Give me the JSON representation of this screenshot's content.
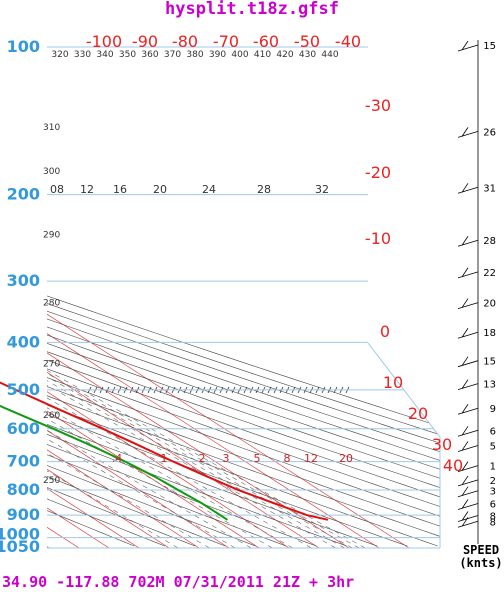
{
  "title": "hysplit.t18z.gfsf",
  "footer": "34.90 -117.88 702M   07/31/2011  21Z  +  3hr",
  "speed_header_1": "SPEED",
  "speed_header_2": "(knts)",
  "colors": {
    "temperature": "#dd1111",
    "dewpoint": "#119911",
    "isobar": "#9fc8e8",
    "isotherm": "#e04040",
    "dry_adiabat": "#444444",
    "mixing_ratio": "#666666",
    "title": "#cc00cc",
    "pressure_label": "#3399dd"
  },
  "chart_data": {
    "type": "skew-t",
    "pressure_levels": [
      "100",
      "200",
      "300",
      "400",
      "500",
      "600",
      "700",
      "800",
      "900",
      "1000",
      "1050"
    ],
    "top_temperature_labels": [
      "-100",
      "-90",
      "-80",
      "-70",
      "-60",
      "-50",
      "-40"
    ],
    "right_temperature_labels": [
      "-30",
      "-20",
      "-10",
      "0",
      "10",
      "20",
      "30",
      "40"
    ],
    "theta_labels_top": [
      "320",
      "330",
      "340",
      "350",
      "360",
      "370",
      "380",
      "390",
      "400",
      "410",
      "420",
      "430",
      "440"
    ],
    "theta_labels_left": [
      {
        "label": "310",
        "p": 145
      },
      {
        "label": "300",
        "p": 178
      },
      {
        "label": "290",
        "p": 240
      },
      {
        "label": "280",
        "p": 330
      },
      {
        "label": "270",
        "p": 440
      },
      {
        "label": "260",
        "p": 560
      },
      {
        "label": "250",
        "p": 760
      }
    ],
    "mixing_ratio_labels_upper": [
      "08",
      "12",
      "16",
      "20",
      "24",
      "28",
      "32"
    ],
    "mixing_ratio_labels_lower": [
      ".4",
      "1",
      "2",
      "3",
      "5",
      "8",
      "12",
      "20"
    ],
    "temperature_profile": [
      {
        "p": 920,
        "t": 37.5
      },
      {
        "p": 900,
        "t": 33
      },
      {
        "p": 850,
        "t": 28
      },
      {
        "p": 800,
        "t": 23
      },
      {
        "p": 750,
        "t": 19.5
      },
      {
        "p": 700,
        "t": 16
      },
      {
        "p": 650,
        "t": 13
      },
      {
        "p": 600,
        "t": 9.5
      },
      {
        "p": 550,
        "t": 5
      },
      {
        "p": 500,
        "t": 0.5
      },
      {
        "p": 450,
        "t": -4
      },
      {
        "p": 400,
        "t": -9
      },
      {
        "p": 350,
        "t": -15
      },
      {
        "p": 300,
        "t": -21
      },
      {
        "p": 250,
        "t": -29
      },
      {
        "p": 200,
        "t": -39
      },
      {
        "p": 175,
        "t": -46
      },
      {
        "p": 150,
        "t": -54
      },
      {
        "p": 125,
        "t": -60
      },
      {
        "p": 100,
        "t": -62
      }
    ],
    "dewpoint_profile": [
      {
        "p": 920,
        "td": 4
      },
      {
        "p": 850,
        "td": 4
      },
      {
        "p": 800,
        "td": 3
      },
      {
        "p": 750,
        "td": 2
      },
      {
        "p": 700,
        "td": 0
      },
      {
        "p": 650,
        "td": -3
      },
      {
        "p": 600,
        "td": -7
      },
      {
        "p": 550,
        "td": -12
      },
      {
        "p": 500,
        "td": -17
      },
      {
        "p": 450,
        "td": -20
      },
      {
        "p": 400,
        "td": -22
      },
      {
        "p": 350,
        "td": -25
      },
      {
        "p": 300,
        "td": -29
      },
      {
        "p": 250,
        "td": -35
      },
      {
        "p": 200,
        "td": -44
      },
      {
        "p": 175,
        "td": -55
      },
      {
        "p": 150,
        "td": -70
      },
      {
        "p": 125,
        "td": -73
      },
      {
        "p": 100,
        "td": -71
      }
    ],
    "wind_speeds_knots": [
      {
        "label": "15",
        "p": 100
      },
      {
        "label": "26",
        "p": 150
      },
      {
        "label": "31",
        "p": 195
      },
      {
        "label": "28",
        "p": 250
      },
      {
        "label": "22",
        "p": 290
      },
      {
        "label": "20",
        "p": 335
      },
      {
        "label": "18",
        "p": 385
      },
      {
        "label": "15",
        "p": 440
      },
      {
        "label": "13",
        "p": 490
      },
      {
        "label": "9",
        "p": 550
      },
      {
        "label": "6",
        "p": 610
      },
      {
        "label": "5",
        "p": 655
      },
      {
        "label": "1",
        "p": 720
      },
      {
        "label": "2",
        "p": 770
      },
      {
        "label": "3",
        "p": 810
      },
      {
        "label": "6",
        "p": 860
      },
      {
        "label": "8",
        "p": 910
      },
      {
        "label": "8",
        "p": 935
      }
    ],
    "hatch_level_p": 500
  }
}
